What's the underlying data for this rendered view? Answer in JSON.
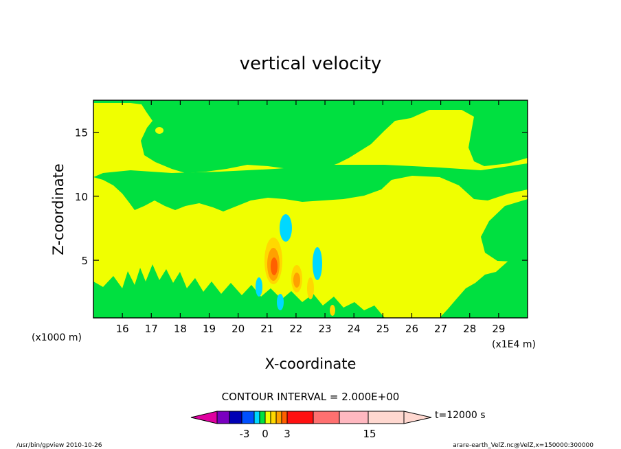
{
  "chart_data": {
    "type": "heatmap",
    "subtype": "filled-contour",
    "title": "vertical velocity",
    "xlabel": "X-coordinate",
    "ylabel": "Z-coordinate",
    "x_ticks": [
      "16",
      "17",
      "18",
      "19",
      "20",
      "21",
      "22",
      "23",
      "24",
      "25",
      "26",
      "27",
      "28",
      "29"
    ],
    "x_tick_values": [
      16,
      17,
      18,
      19,
      20,
      21,
      22,
      23,
      24,
      25,
      26,
      27,
      28,
      29
    ],
    "y_ticks": [
      "5",
      "10",
      "15"
    ],
    "y_tick_values": [
      5,
      10,
      15
    ],
    "xlim": [
      15.0,
      30.0
    ],
    "ylim": [
      0.5,
      17.5
    ],
    "x_scale_note": "(x1E4 m)",
    "y_scale_note": "(x1000 m)",
    "contour_interval": "CONTOUR INTERVAL = 2.000E+00",
    "time_label": "t=12000 s",
    "colorbar": {
      "tick_labels": [
        "-3",
        "0",
        "3",
        "15"
      ],
      "tick_values": [
        -3,
        0,
        3,
        15
      ],
      "levels": [
        -9,
        -7,
        -5,
        -3,
        -1,
        1,
        3,
        5,
        7,
        9,
        11,
        13,
        15,
        17
      ],
      "colors": [
        "#df00a0",
        "#7a00c0",
        "#0000b4",
        "#0050ff",
        "#00d8ff",
        "#00e040",
        "#f0ff00",
        "#ffd800",
        "#ffa000",
        "#ff6000",
        "#ff1010",
        "#ff7070",
        "#ffb8c0",
        "#ffd8d0"
      ]
    },
    "regions": {
      "weak_upward": {
        "color": "#f0ff00",
        "range": "0 to 1"
      },
      "weak_downward": {
        "color": "#00e040",
        "range": "-1 to 0"
      },
      "moderate_downward": {
        "color": "#00d8ff",
        "range": "-3 to -1"
      },
      "moderate_upward": {
        "color": "#ffd800",
        "range": "1 to 3"
      },
      "strong_upward": {
        "color": "#ffa000",
        "range": "3 to 7"
      }
    }
  },
  "footer": {
    "left": "/usr/bin/gpview  2010-10-26",
    "right": "arare-earth_VelZ.nc@VelZ,x=150000:300000"
  }
}
